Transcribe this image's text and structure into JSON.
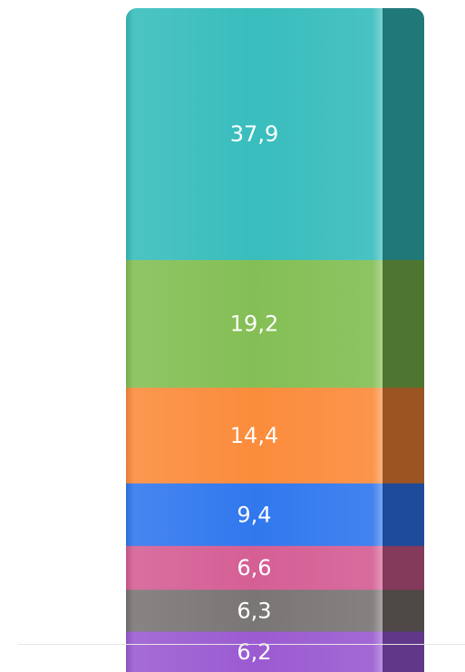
{
  "chart_data": {
    "type": "bar",
    "orientation": "vertical",
    "stacked": true,
    "labels": [
      "37,9",
      "19,2",
      "14,4",
      "9,4",
      "6,6",
      "6,3",
      "6,2"
    ],
    "values": [
      37.9,
      19.2,
      14.4,
      9.4,
      6.6,
      6.3,
      6.2
    ],
    "colors": [
      "#39bdbd",
      "#84bf55",
      "#fb8c3c",
      "#3178ee",
      "#d55f95",
      "#7a7675",
      "#9b5bd1"
    ],
    "side_colors": [
      "#217878",
      "#4e7630",
      "#9c5423",
      "#1e4b9a",
      "#843a5b",
      "#4e4946",
      "#613789"
    ],
    "title": "",
    "xlabel": "",
    "ylabel": "",
    "legend": "none",
    "grid": false
  }
}
